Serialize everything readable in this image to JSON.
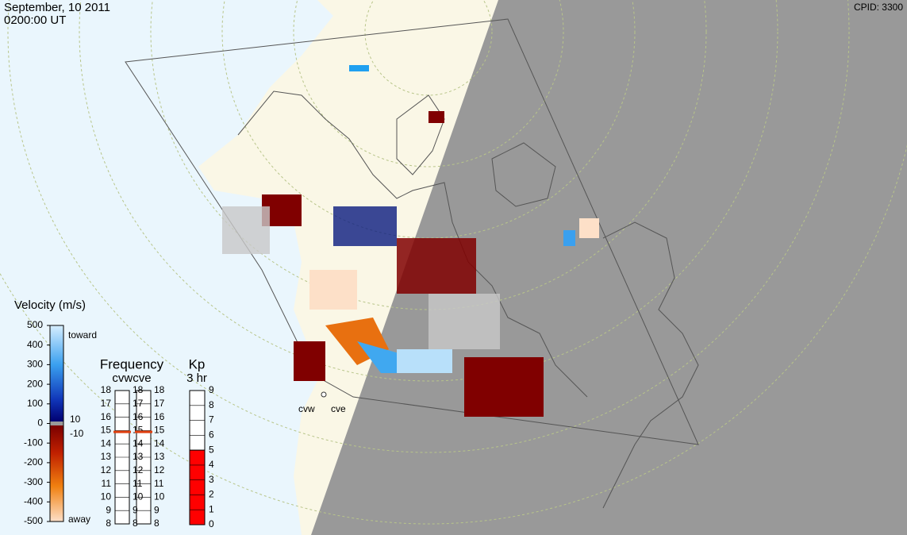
{
  "header": {
    "date": "September, 10 2011",
    "time": "0200:00 UT",
    "cpid": "CPID:  3300"
  },
  "radars": [
    "cvw",
    "cve"
  ],
  "velocity": {
    "title": "Velocity (m/s)",
    "ticks": [
      500,
      400,
      300,
      200,
      100,
      0,
      -100,
      -200,
      -300,
      -400,
      -500
    ],
    "toward": "toward",
    "away": "away",
    "gray_band": [
      10,
      -10
    ]
  },
  "frequency": {
    "title": "Frequency",
    "columns": "cvwcve",
    "ticks": [
      18,
      17,
      16,
      15,
      14,
      13,
      12,
      11,
      10,
      9,
      8
    ],
    "values": [
      14.9,
      14.9
    ]
  },
  "kp": {
    "title": "Kp",
    "subtitle": "3 hr",
    "ticks": [
      9,
      8,
      7,
      6,
      5,
      4,
      3,
      2,
      1,
      0
    ],
    "value": 5
  }
}
